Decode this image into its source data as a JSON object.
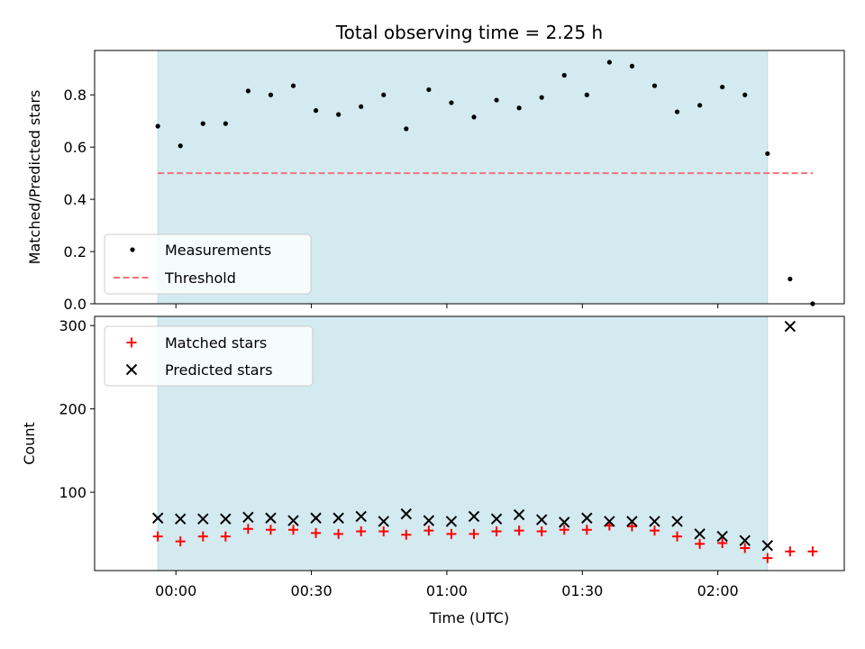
{
  "chart_data": {
    "title": "Total observing time = 2.25 h",
    "xlabel": "Time (UTC)",
    "x_unit": "minutes after 00:00 UTC",
    "xlim": [
      -18,
      148
    ],
    "xticks": [
      {
        "value": 0,
        "label": "00:00"
      },
      {
        "value": 30,
        "label": "00:30"
      },
      {
        "value": 60,
        "label": "01:00"
      },
      {
        "value": 90,
        "label": "01:30"
      },
      {
        "value": 120,
        "label": "02:00"
      }
    ],
    "observing_window": {
      "start": -4,
      "end": 131,
      "color": "#d3eaf0"
    },
    "panels": [
      {
        "id": "ratio",
        "type": "scatter",
        "ylabel": "Matched/Predicted stars",
        "ylim": [
          0,
          0.97
        ],
        "yticks": [
          0,
          0.2,
          0.4,
          0.6,
          0.8
        ],
        "ytick_labels": [
          "0.0",
          "0.2",
          "0.4",
          "0.6",
          "0.8"
        ],
        "legend": {
          "position": "lower-left",
          "entries": [
            "Measurements",
            "Threshold"
          ]
        },
        "series": [
          {
            "name": "Measurements",
            "marker": "dot",
            "color": "#000000",
            "x": [
              -4,
              1,
              6,
              11,
              16,
              21,
              26,
              31,
              36,
              41,
              46,
              51,
              56,
              61,
              66,
              71,
              76,
              81,
              86,
              91,
              96,
              101,
              106,
              111,
              116,
              121,
              126,
              131,
              136,
              141
            ],
            "y": [
              0.68,
              0.605,
              0.69,
              0.69,
              0.815,
              0.8,
              0.835,
              0.74,
              0.725,
              0.755,
              0.8,
              0.67,
              0.82,
              0.77,
              0.715,
              0.78,
              0.75,
              0.79,
              0.875,
              0.8,
              0.925,
              0.91,
              0.835,
              0.735,
              0.76,
              0.83,
              0.8,
              0.575,
              0.095,
              0.0
            ]
          },
          {
            "name": "Threshold",
            "style": "dashed-line",
            "color": "#f07478",
            "x": [
              -4,
              141
            ],
            "y": [
              0.5,
              0.5
            ]
          }
        ]
      },
      {
        "id": "counts",
        "type": "scatter",
        "ylabel": "Count",
        "ylim": [
          6,
          311
        ],
        "yticks": [
          100,
          200,
          300
        ],
        "ytick_labels": [
          "100",
          "200",
          "300"
        ],
        "legend": {
          "position": "upper-left",
          "entries": [
            "Matched stars",
            "Predicted stars"
          ]
        },
        "series": [
          {
            "name": "Matched stars",
            "marker": "plus",
            "color": "#ff0000",
            "x": [
              -4,
              1,
              6,
              11,
              16,
              21,
              26,
              31,
              36,
              41,
              46,
              51,
              56,
              61,
              66,
              71,
              76,
              81,
              86,
              91,
              96,
              101,
              106,
              111,
              116,
              121,
              126,
              131,
              136,
              141
            ],
            "y": [
              47,
              41,
              47,
              47,
              56,
              55,
              55,
              51,
              50,
              53,
              53,
              49,
              54,
              50,
              50,
              53,
              54,
              53,
              55,
              55,
              60,
              59,
              54,
              47,
              38,
              39,
              33,
              21,
              29,
              29
            ]
          },
          {
            "name": "Predicted stars",
            "marker": "x",
            "color": "#000000",
            "x": [
              -4,
              1,
              6,
              11,
              16,
              21,
              26,
              31,
              36,
              41,
              46,
              51,
              56,
              61,
              66,
              71,
              76,
              81,
              86,
              91,
              96,
              101,
              106,
              111,
              116,
              121,
              126,
              131,
              136
            ],
            "y": [
              69,
              68,
              68,
              68,
              70,
              69,
              66,
              69,
              69,
              71,
              65,
              74,
              66,
              65,
              71,
              68,
              73,
              67,
              64,
              69,
              65,
              65,
              65,
              65,
              50,
              47,
              42,
              36,
              299
            ]
          }
        ]
      }
    ]
  }
}
